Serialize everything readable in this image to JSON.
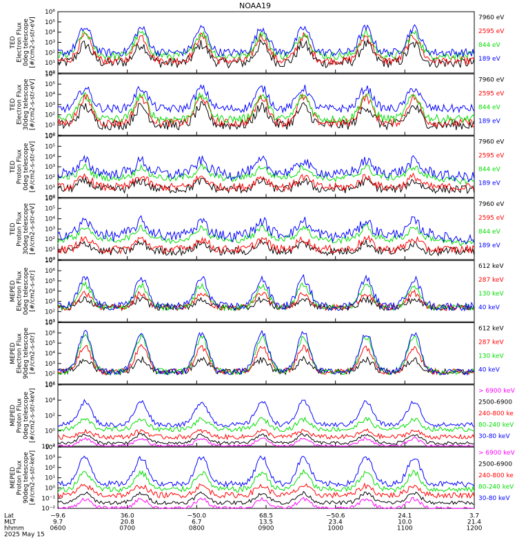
{
  "title": "NOAA19",
  "colors": {
    "black": "#000000",
    "red": "#ff0000",
    "green": "#00dd00",
    "blue": "#0000ff",
    "magenta": "#ff00ff"
  },
  "chart_data": [
    {
      "type": "line",
      "ylabel": [
        "TED",
        "Electron Flux",
        "0deg telescope",
        "[#/cm2-s-str-eV]"
      ],
      "yticks": [
        "10⁰",
        "10¹",
        "10²",
        "10³",
        "10⁴",
        "10⁵",
        "10⁶"
      ],
      "ylog": true,
      "ylim": [
        0,
        6
      ],
      "series": [
        {
          "name": "7960 eV",
          "color": "#000000",
          "peak": 2.8,
          "floor": 1.0,
          "noise": 0.5,
          "lift": false
        },
        {
          "name": "2595 eV",
          "color": "#ff0000",
          "peak": 3.6,
          "floor": 1.2,
          "noise": 0.4,
          "lift": false
        },
        {
          "name": "844 eV",
          "color": "#00dd00",
          "peak": 3.9,
          "floor": 1.7,
          "noise": 0.4,
          "lift": false
        },
        {
          "name": "189 eV",
          "color": "#0000ff",
          "peak": 4.4,
          "floor": 2.0,
          "noise": 0.4,
          "lift": false
        }
      ]
    },
    {
      "type": "line",
      "ylabel": [
        "TED",
        "Electron Flux",
        "30deg telescope",
        "[#/cm2-s-str-eV]"
      ],
      "yticks": [
        "10⁰",
        "10¹",
        "10²",
        "10³",
        "10⁴",
        "10⁵",
        "10⁶"
      ],
      "ylog": true,
      "ylim": [
        0,
        6
      ],
      "series": [
        {
          "name": "7960 eV",
          "color": "#000000",
          "peak": 2.8,
          "floor": 1.0,
          "noise": 0.5,
          "lift": false
        },
        {
          "name": "2595 eV",
          "color": "#ff0000",
          "peak": 3.7,
          "floor": 1.2,
          "noise": 0.4,
          "lift": false
        },
        {
          "name": "844 eV",
          "color": "#00dd00",
          "peak": 3.9,
          "floor": 1.6,
          "noise": 0.4,
          "lift": false
        },
        {
          "name": "189 eV",
          "color": "#0000ff",
          "peak": 4.6,
          "floor": 2.6,
          "noise": 0.4,
          "lift": false
        }
      ]
    },
    {
      "type": "line",
      "ylabel": [
        "TED",
        "Proton Flux",
        "0deg telescope",
        "[#/cm2-s-str-eV]"
      ],
      "yticks": [
        "10⁰",
        "10¹",
        "10²",
        "10³",
        "10⁴",
        "10⁵",
        "10⁶"
      ],
      "ylog": true,
      "ylim": [
        0,
        6
      ],
      "series": [
        {
          "name": "7960 eV",
          "color": "#000000",
          "peak": 1.6,
          "floor": 0.8,
          "noise": 0.4,
          "lift": false
        },
        {
          "name": "2595 eV",
          "color": "#ff0000",
          "peak": 2.0,
          "floor": 1.0,
          "noise": 0.4,
          "lift": false
        },
        {
          "name": "844 eV",
          "color": "#00dd00",
          "peak": 3.0,
          "floor": 1.6,
          "noise": 0.3,
          "lift": true
        },
        {
          "name": "189 eV",
          "color": "#0000ff",
          "peak": 3.6,
          "floor": 2.0,
          "noise": 0.5,
          "lift": true
        }
      ]
    },
    {
      "type": "line",
      "ylabel": [
        "TED",
        "Proton Flux",
        "30deg telescope",
        "[#/cm2-s-str-eV]"
      ],
      "yticks": [
        "10⁰",
        "10¹",
        "10²",
        "10³",
        "10⁴",
        "10⁵",
        "10⁶"
      ],
      "ylog": true,
      "ylim": [
        0,
        6
      ],
      "series": [
        {
          "name": "7960 eV",
          "color": "#000000",
          "peak": 1.6,
          "floor": 0.8,
          "noise": 0.4,
          "lift": false
        },
        {
          "name": "2595 eV",
          "color": "#ff0000",
          "peak": 2.0,
          "floor": 1.0,
          "noise": 0.4,
          "lift": false
        },
        {
          "name": "844 eV",
          "color": "#00dd00",
          "peak": 3.2,
          "floor": 1.6,
          "noise": 0.3,
          "lift": true
        },
        {
          "name": "189 eV",
          "color": "#0000ff",
          "peak": 3.8,
          "floor": 2.0,
          "noise": 0.5,
          "lift": true
        }
      ]
    },
    {
      "type": "line",
      "ylabel": [
        "MEPED",
        "Electron Flux",
        "0deg telescope",
        "[#/cm2-s-str]"
      ],
      "yticks": [
        "10¹",
        "10²",
        "10³",
        "10⁴",
        "10⁵",
        "10⁶",
        "10⁷"
      ],
      "ylog": true,
      "ylim": [
        1,
        7
      ],
      "series": [
        {
          "name": "612 keV",
          "color": "#000000",
          "peak": 3.2,
          "floor": 2.4,
          "noise": 0.3,
          "lift": false
        },
        {
          "name": "287 keV",
          "color": "#ff0000",
          "peak": 3.8,
          "floor": 2.4,
          "noise": 0.3,
          "lift": false
        },
        {
          "name": "130 keV",
          "color": "#00dd00",
          "peak": 4.6,
          "floor": 2.4,
          "noise": 0.3,
          "lift": false
        },
        {
          "name": "40 keV",
          "color": "#0000ff",
          "peak": 5.2,
          "floor": 2.5,
          "noise": 0.4,
          "lift": false
        }
      ]
    },
    {
      "type": "line",
      "ylabel": [
        "MEPED",
        "Electron Flux",
        "90deg telescope",
        "[#/cm2-s-str]"
      ],
      "yticks": [
        "10¹",
        "10²",
        "10³",
        "10⁴",
        "10⁵",
        "10⁶",
        "10⁷"
      ],
      "ylog": true,
      "ylim": [
        1,
        7
      ],
      "series": [
        {
          "name": "612 keV",
          "color": "#000000",
          "peak": 3.4,
          "floor": 2.2,
          "noise": 0.3,
          "lift": false
        },
        {
          "name": "287 keV",
          "color": "#ff0000",
          "peak": 4.6,
          "floor": 2.2,
          "noise": 0.3,
          "lift": false
        },
        {
          "name": "130 keV",
          "color": "#00dd00",
          "peak": 5.6,
          "floor": 2.2,
          "noise": 0.3,
          "lift": false
        },
        {
          "name": "40 keV",
          "color": "#0000ff",
          "peak": 6.0,
          "floor": 2.2,
          "noise": 0.3,
          "lift": false
        }
      ]
    },
    {
      "type": "line",
      "ylabel": [
        "MEPED",
        "Proton Flux",
        "0deg telescope",
        "[#/cm2-s-str-keV]"
      ],
      "yticks": [
        "10⁻²",
        "10⁰",
        "10²",
        "10⁴",
        "10⁶"
      ],
      "ylog": true,
      "ylim": [
        -2,
        6
      ],
      "series": [
        {
          "name": "> 6900 keV",
          "color": "#ff00ff",
          "peak": -1.0,
          "floor": -2.0,
          "noise": 0.2,
          "lift": false
        },
        {
          "name": "2500-6900",
          "color": "#000000",
          "peak": -0.5,
          "floor": -1.6,
          "noise": 0.2,
          "lift": false
        },
        {
          "name": "240-800 ke",
          "color": "#ff0000",
          "peak": 0.0,
          "floor": -0.8,
          "noise": 0.3,
          "lift": false
        },
        {
          "name": "80-240 keV",
          "color": "#00dd00",
          "peak": 1.5,
          "floor": 0.2,
          "noise": 0.3,
          "lift": false
        },
        {
          "name": "30-80 keV",
          "color": "#0000ff",
          "peak": 3.8,
          "floor": 0.8,
          "noise": 0.3,
          "lift": false
        }
      ]
    },
    {
      "type": "line",
      "ylabel": [
        "MEPED",
        "Proton Flux",
        "90deg telescope",
        "[#/cm2-s-str-keV]"
      ],
      "yticks": [
        "10⁻²",
        "10⁻¹",
        "10⁰",
        "10¹",
        "10²",
        "10³",
        "10⁴"
      ],
      "ylog": true,
      "ylim": [
        -2,
        4.5
      ],
      "series": [
        {
          "name": "> 6900 keV",
          "color": "#ff00ff",
          "peak": -1.0,
          "floor": -2.0,
          "noise": 0.2,
          "lift": false
        },
        {
          "name": "2500-6900",
          "color": "#000000",
          "peak": -0.4,
          "floor": -1.4,
          "noise": 0.2,
          "lift": false
        },
        {
          "name": "240-800 ke",
          "color": "#ff0000",
          "peak": 0.4,
          "floor": -0.6,
          "noise": 0.3,
          "lift": false
        },
        {
          "name": "80-240 keV",
          "color": "#00dd00",
          "peak": 1.8,
          "floor": 0.0,
          "noise": 0.3,
          "lift": false
        },
        {
          "name": "30-80 keV",
          "color": "#0000ff",
          "peak": 3.4,
          "floor": 0.6,
          "noise": 0.3,
          "lift": false
        }
      ]
    }
  ],
  "xaxis": {
    "row_labels": [
      "Lat",
      "MLT",
      "hhmm",
      "2025 May 15"
    ],
    "ticks": [
      {
        "lat": "−9.6",
        "mlt": "9.7",
        "hhmm": "0600"
      },
      {
        "lat": "36.0",
        "mlt": "20.8",
        "hhmm": "0700"
      },
      {
        "lat": "−50.0",
        "mlt": "6.7",
        "hhmm": "0800"
      },
      {
        "lat": "68.5",
        "mlt": "13.5",
        "hhmm": "0900"
      },
      {
        "lat": "−50.6",
        "mlt": "23.4",
        "hhmm": "1000"
      },
      {
        "lat": "24.1",
        "mlt": "10.0",
        "hhmm": "1100"
      },
      {
        "lat": "3.7",
        "mlt": "21.4",
        "hhmm": "1200"
      }
    ]
  }
}
